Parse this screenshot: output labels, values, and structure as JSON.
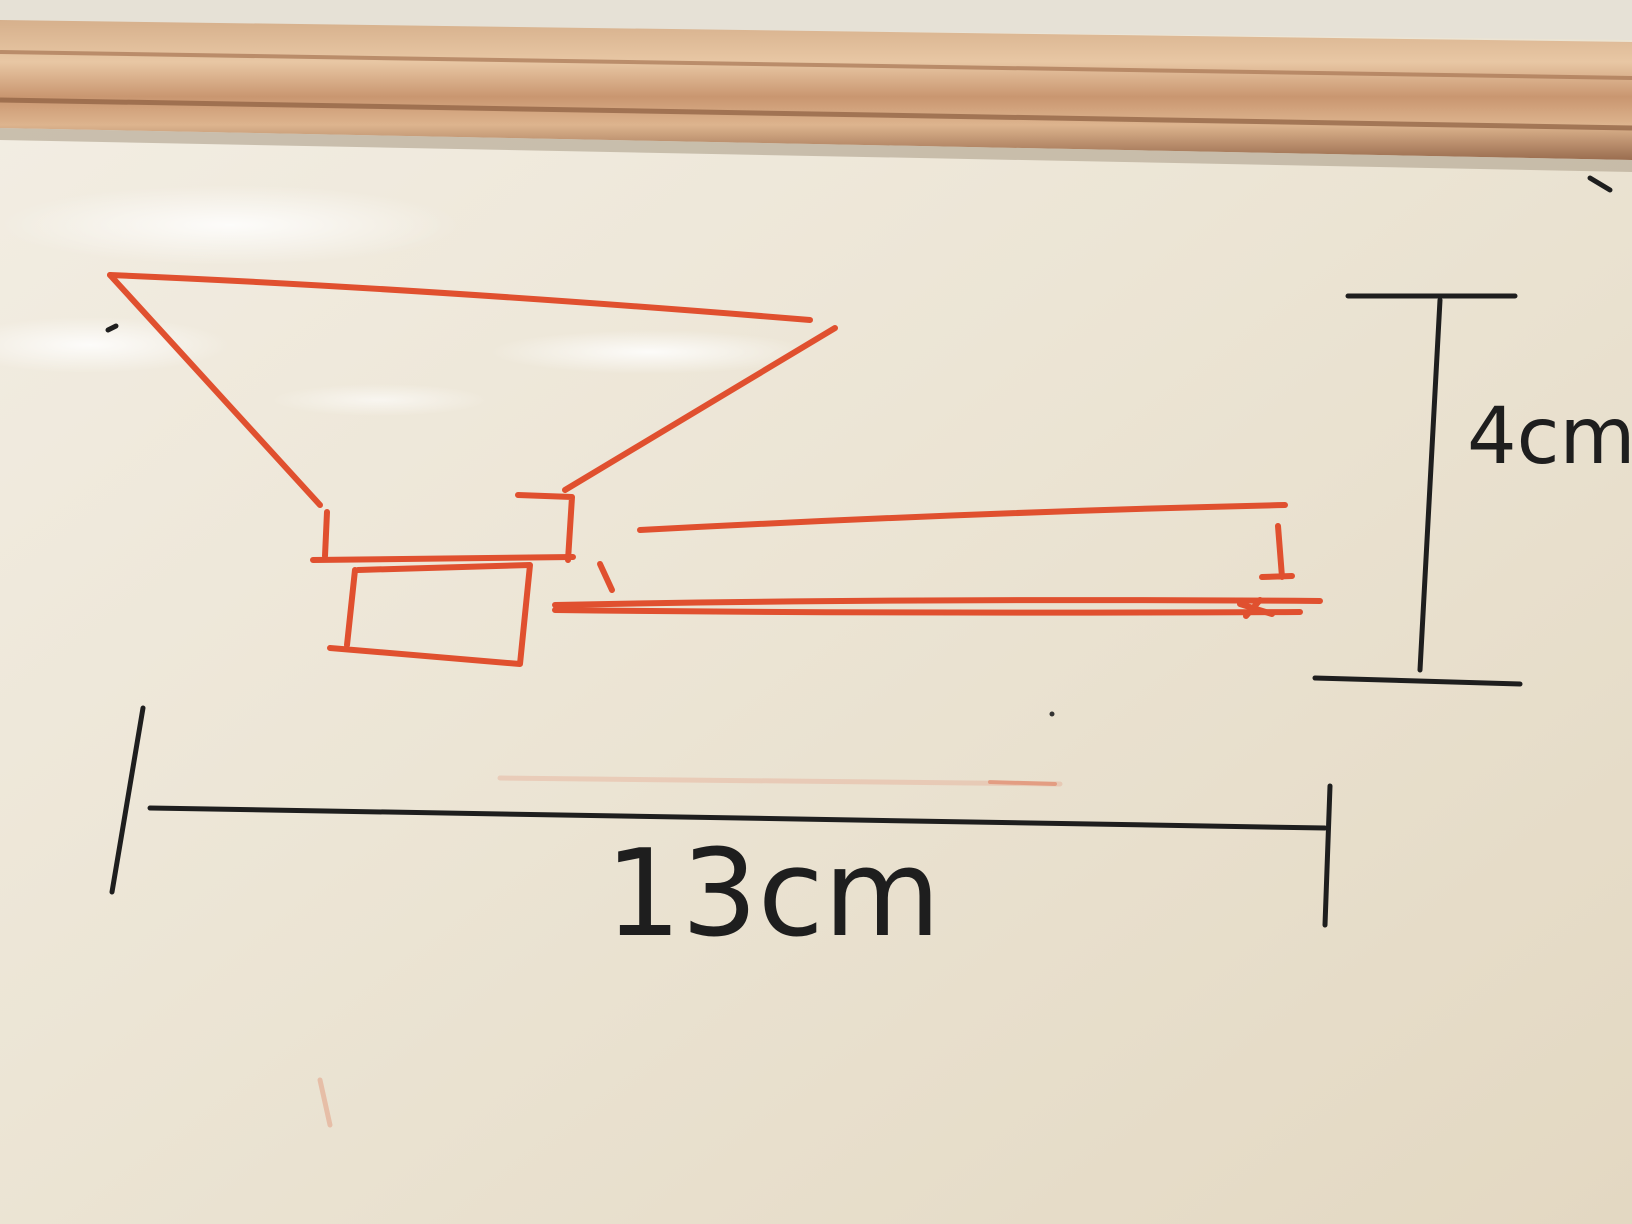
{
  "whiteboard": {
    "colors": {
      "board": "#ece6d8",
      "frame_wood": "#d9ae86",
      "red_marker": "#e0502f",
      "black_marker": "#1e1e1e"
    },
    "drawing": {
      "subject": "speaker-cone-with-magnet-and-tube"
    },
    "dimensions": {
      "height_label": "4cm",
      "width_label": "13cm"
    }
  }
}
